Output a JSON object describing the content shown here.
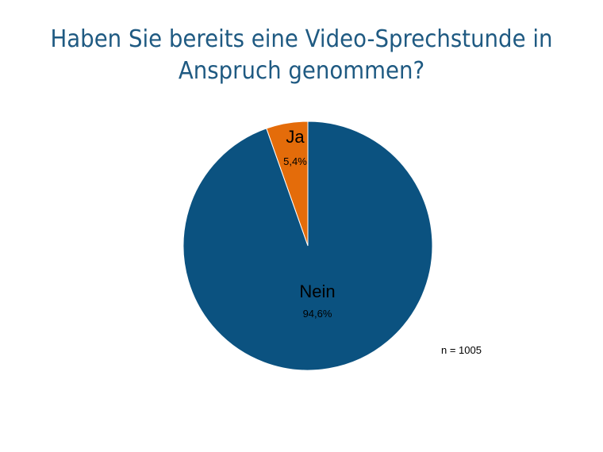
{
  "chart_data": {
    "type": "pie",
    "title": "Haben Sie bereits eine Video-Sprechstunde in Anspruch genommen?",
    "title_lines": [
      "Haben Sie bereits eine Video-Sprechstunde in",
      "Anspruch genommen?"
    ],
    "slices": [
      {
        "label": "Ja",
        "value": 5.4,
        "value_label": "5,4%",
        "color": "#e46c0a"
      },
      {
        "label": "Nein",
        "value": 94.6,
        "value_label": "94,6%",
        "color": "#0b5280"
      }
    ],
    "annotation": "n = 1005",
    "legend": "none"
  }
}
